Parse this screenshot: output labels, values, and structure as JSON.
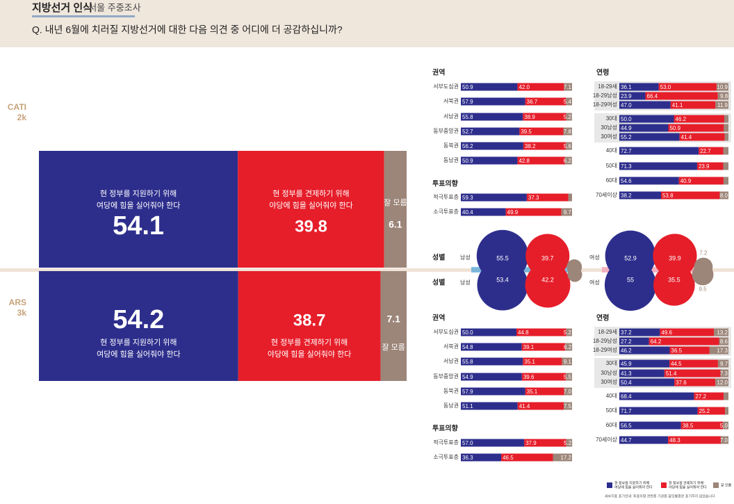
{
  "header": {
    "title": "지방선거 인식",
    "subtitle": ": 서울 주중조사",
    "question": "Q. 내년 6월에 치러질 지방선거에 대한 다음 의견 중 어디에 더 공감하십니까?"
  },
  "colors": [
    "#2d2e8c",
    "#e61e2a",
    "#9c8579"
  ],
  "options": [
    [
      "현 정부를 지원하기 위해",
      "여당에 힘을 실어줘야 한다"
    ],
    [
      "현 정부를 견제하기 위해",
      "야당에 힘을 실어줘야 한다"
    ],
    [
      "잘 모름"
    ]
  ],
  "footnote": "세부지표 표기안내: 투표의향 관련층 기권층·잘모름층은 표기하지 않았습니다",
  "surveys": [
    {
      "method": "CATI",
      "sample": "2k",
      "values": [
        54.1,
        39.8,
        6.1
      ],
      "sections": [
        {
          "title": "권역",
          "rows": [
            {
              "label": "서부도심권",
              "values": [
                50.9,
                42.0,
                7.1
              ],
              "value_labels": [
                "50.9",
                "42.0",
                "7.1"
              ]
            },
            {
              "label": "서북권",
              "values": [
                57.9,
                36.7,
                5.4
              ]
            },
            {
              "label": "서남권",
              "values": [
                55.8,
                38.9,
                5.2
              ]
            },
            {
              "label": "동부중앙권",
              "values": [
                52.7,
                39.5,
                7.8
              ]
            },
            {
              "label": "동북권",
              "values": [
                56.2,
                38.2,
                5.6
              ]
            },
            {
              "label": "동남권",
              "values": [
                50.9,
                42.8,
                6.2
              ]
            }
          ]
        },
        {
          "title": "투표의향",
          "rows": [
            {
              "label": "적극투표층",
              "values": [
                59.3,
                37.3,
                3.4
              ],
              "value_labels": [
                "59.3",
                "37.3",
                null
              ]
            },
            {
              "label": "소극투표층",
              "values": [
                40.4,
                49.9,
                9.7
              ]
            }
          ]
        },
        {
          "title": "연령",
          "rows": [
            {
              "label": "18-29세",
              "values": [
                36.1,
                53.0,
                10.9
              ],
              "value_labels": [
                "36.1",
                "53.0",
                "10.9"
              ]
            },
            {
              "label": "18-29남성",
              "values": [
                23.9,
                66.4,
                9.8
              ]
            },
            {
              "label": "18-29여성",
              "values": [
                47.0,
                41.1,
                11.9
              ],
              "value_labels": [
                "47.0",
                "41.1",
                "11.9"
              ]
            },
            {
              "label": "30대",
              "values": [
                50.0,
                46.2,
                3.8
              ],
              "value_labels": [
                "50.0",
                "46.2",
                null
              ]
            },
            {
              "label": "30남성",
              "values": [
                44.9,
                50.9,
                4.2
              ],
              "value_labels": [
                "44.9",
                "50.9",
                null
              ]
            },
            {
              "label": "30여성",
              "values": [
                55.2,
                41.4,
                3.4
              ],
              "value_labels": [
                "55.2",
                "41.4",
                null
              ]
            },
            {
              "label": "40대",
              "values": [
                72.7,
                22.7,
                4.6
              ],
              "value_labels": [
                "72.7",
                "22.7",
                null
              ]
            },
            {
              "label": "50대",
              "values": [
                71.3,
                23.9,
                4.8
              ],
              "value_labels": [
                "71.3",
                "23.9",
                null
              ]
            },
            {
              "label": "60대",
              "values": [
                54.6,
                40.9,
                4.5
              ],
              "value_labels": [
                "54.6",
                "40.9",
                null
              ]
            },
            {
              "label": "70세이상",
              "values": [
                38.2,
                53.8,
                8.0
              ],
              "value_labels": [
                "38.2",
                "53.8",
                "8.0"
              ]
            }
          ]
        }
      ],
      "gender": {
        "title": "성별",
        "rows": [
          {
            "label": "남성",
            "values": [
              55.5,
              39.7,
              4.8
            ],
            "value_labels": [
              "55.5",
              "39.7",
              null
            ]
          },
          {
            "label": "여성",
            "values": [
              52.9,
              39.9,
              7.2
            ]
          }
        ]
      }
    },
    {
      "method": "ARS",
      "sample": "3k",
      "values": [
        54.2,
        38.7,
        7.1
      ],
      "sections": [
        {
          "title": "권역",
          "rows": [
            {
              "label": "서부도심권",
              "values": [
                50.0,
                44.8,
                5.2
              ],
              "value_labels": [
                "50.0",
                "44.8",
                "5.2"
              ]
            },
            {
              "label": "서북권",
              "values": [
                54.8,
                39.1,
                6.2
              ]
            },
            {
              "label": "서남권",
              "values": [
                55.8,
                35.1,
                9.1
              ]
            },
            {
              "label": "동부중앙권",
              "values": [
                54.9,
                39.6,
                5.5
              ]
            },
            {
              "label": "동북권",
              "values": [
                57.9,
                35.1,
                7.0
              ],
              "value_labels": [
                "57.9",
                "35.1",
                "7.0"
              ]
            },
            {
              "label": "동남권",
              "values": [
                51.1,
                41.4,
                7.5
              ]
            }
          ]
        },
        {
          "title": "투표의향",
          "rows": [
            {
              "label": "적극투표층",
              "values": [
                57.0,
                37.9,
                5.2
              ],
              "value_labels": [
                "57.0",
                "37.9",
                "5.2"
              ]
            },
            {
              "label": "소극투표층",
              "values": [
                36.3,
                46.5,
                17.2
              ]
            }
          ]
        },
        {
          "title": "연령",
          "rows": [
            {
              "label": "18-29세",
              "values": [
                37.2,
                49.6,
                13.2
              ]
            },
            {
              "label": "18-29남성",
              "values": [
                27.2,
                64.2,
                8.6
              ]
            },
            {
              "label": "18-29여성",
              "values": [
                46.2,
                36.5,
                17.3
              ]
            },
            {
              "label": "30대",
              "values": [
                45.9,
                44.5,
                9.7
              ]
            },
            {
              "label": "30남성",
              "values": [
                41.3,
                51.4,
                7.3
              ]
            },
            {
              "label": "30여성",
              "values": [
                50.4,
                37.6,
                12.0
              ],
              "value_labels": [
                "50.4",
                "37.6",
                "12.0"
              ]
            },
            {
              "label": "40대",
              "values": [
                68.4,
                27.2,
                4.4
              ],
              "value_labels": [
                "68.4",
                "27.2",
                null
              ]
            },
            {
              "label": "50대",
              "values": [
                71.7,
                25.2,
                3.1
              ],
              "value_labels": [
                "71.7",
                "25.2",
                null
              ]
            },
            {
              "label": "60대",
              "values": [
                56.5,
                38.5,
                5.0
              ],
              "value_labels": [
                "56.5",
                "38.5",
                "5.0"
              ]
            },
            {
              "label": "70세이상",
              "values": [
                44.7,
                48.3,
                7.0
              ],
              "value_labels": [
                "44.7",
                "48.3",
                "7.0"
              ]
            }
          ]
        }
      ],
      "gender": {
        "title": "성별",
        "rows": [
          {
            "label": "남성",
            "values": [
              53.4,
              42.2,
              4.4
            ],
            "value_labels": [
              "53.4",
              "42.2",
              null
            ]
          },
          {
            "label": "여성",
            "values": [
              55.0,
              35.5,
              9.5
            ]
          }
        ]
      }
    }
  ]
}
